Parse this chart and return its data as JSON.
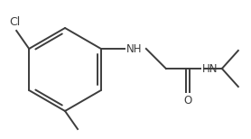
{
  "bg_color": "#ffffff",
  "line_color": "#3d3d3d",
  "nh_color": "#3d3d3d",
  "cl_label": "Cl",
  "nh_label": "NH",
  "hn_label": "HN",
  "o_label": "O",
  "figsize": [
    2.78,
    1.54
  ],
  "dpi": 100,
  "lw": 1.4
}
